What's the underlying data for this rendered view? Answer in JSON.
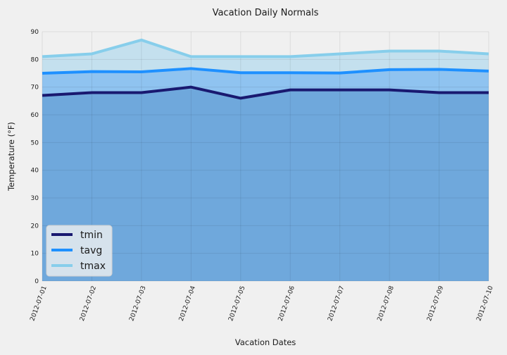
{
  "chart_data": {
    "type": "area",
    "title": "Vacation Daily Normals",
    "xlabel": "Vacation Dates",
    "ylabel": "Temperature (°F)",
    "x": [
      "2012-07-01",
      "2012-07-02",
      "2012-07-03",
      "2012-07-04",
      "2012-07-05",
      "2012-07-06",
      "2012-07-07",
      "2012-07-08",
      "2012-07-09",
      "2012-07-10"
    ],
    "ylim": [
      0,
      90
    ],
    "yticks": [
      0,
      10,
      20,
      30,
      40,
      50,
      60,
      70,
      80,
      90
    ],
    "grid": true,
    "legend_position": "bottom-left",
    "series": [
      {
        "name": "tmin",
        "color": "#191970",
        "fill": "#6fa8dc",
        "values": [
          67,
          68,
          68,
          70,
          66,
          69,
          69,
          69,
          68,
          68
        ]
      },
      {
        "name": "tavg",
        "color": "#1e90ff",
        "fill": "#8fc3f0",
        "values": [
          75,
          75.6,
          75.5,
          76.7,
          75.2,
          75.2,
          75.1,
          76.3,
          76.4,
          75.8
        ]
      },
      {
        "name": "tmax",
        "color": "#87ceeb",
        "fill": "#c4e0ee",
        "values": [
          81,
          82,
          87,
          81,
          81,
          81,
          82,
          83,
          83,
          82
        ]
      }
    ]
  }
}
